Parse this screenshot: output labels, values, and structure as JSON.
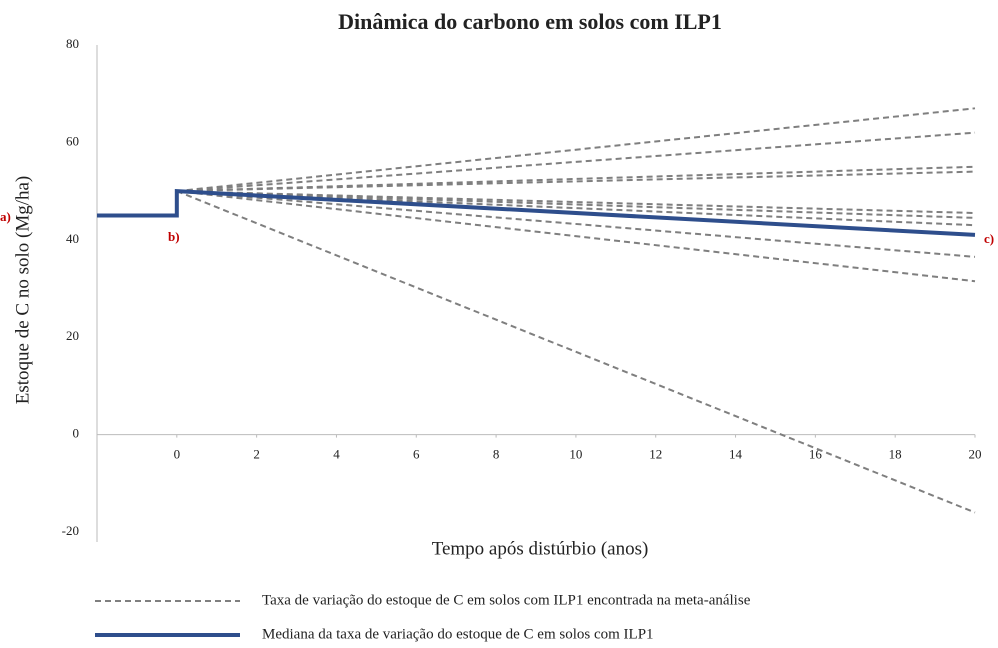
{
  "chart_data": {
    "type": "line",
    "title": "Dinâmica do carbono em solos com ILP1",
    "xlabel": "Tempo após distúrbio (anos)",
    "ylabel": "Estoque de C no solo (Mg/ha)",
    "xlim": [
      -2,
      20
    ],
    "xticks": [
      0,
      2,
      4,
      6,
      8,
      10,
      12,
      14,
      16,
      18,
      20
    ],
    "ylim": [
      -20,
      80
    ],
    "yticks": [
      -20,
      0,
      20,
      40,
      60,
      80
    ],
    "grid": false,
    "legend": "bottom",
    "annotations": [
      "a)",
      "b)",
      "c)"
    ],
    "series": [
      {
        "name": "Taxa de variação  do estoque de C em solos com ILP1 encontrada na meta-análise",
        "color": "#7f7f7f",
        "style": "dashed",
        "x": [
          0,
          20
        ],
        "values": [
          50,
          67
        ]
      },
      {
        "color": "#7f7f7f",
        "style": "dashed",
        "x": [
          0,
          20
        ],
        "values": [
          50,
          62
        ]
      },
      {
        "color": "#7f7f7f",
        "style": "dashed",
        "x": [
          0,
          20
        ],
        "values": [
          50,
          55
        ]
      },
      {
        "color": "#7f7f7f",
        "style": "dashed",
        "x": [
          0,
          20
        ],
        "values": [
          50,
          54
        ]
      },
      {
        "color": "#7f7f7f",
        "style": "dashed",
        "x": [
          0,
          20
        ],
        "values": [
          50,
          45.5
        ]
      },
      {
        "color": "#7f7f7f",
        "style": "dashed",
        "x": [
          0,
          20
        ],
        "values": [
          50,
          44.5
        ]
      },
      {
        "color": "#7f7f7f",
        "style": "dashed",
        "x": [
          0,
          20
        ],
        "values": [
          50,
          43
        ]
      },
      {
        "color": "#7f7f7f",
        "style": "dashed",
        "x": [
          0,
          20
        ],
        "values": [
          50,
          36.5
        ]
      },
      {
        "color": "#7f7f7f",
        "style": "dashed",
        "x": [
          0,
          20
        ],
        "values": [
          50,
          31.5
        ]
      },
      {
        "color": "#7f7f7f",
        "style": "dashed",
        "x": [
          0,
          20
        ],
        "values": [
          50,
          -16
        ]
      },
      {
        "name": "Mediana da taxa de variação  do estoque de C em solos com ILP1",
        "color": "#2e4e8c",
        "style": "solid",
        "x": [
          -2,
          0,
          0,
          20
        ],
        "values": [
          45,
          45,
          50,
          41
        ]
      }
    ]
  }
}
